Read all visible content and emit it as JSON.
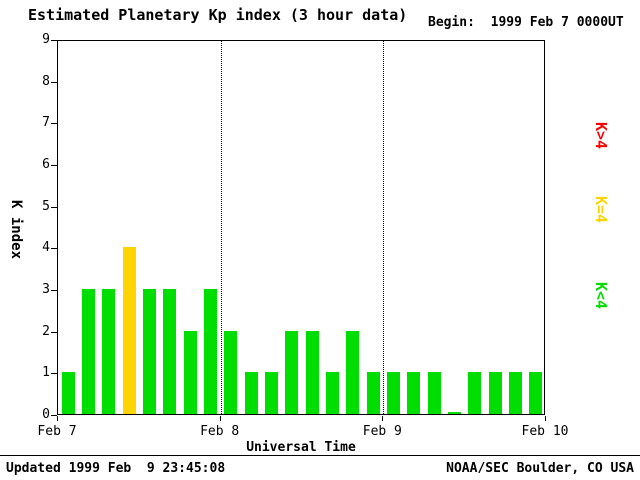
{
  "header": {
    "title": "Estimated Planetary Kp index (3 hour data)",
    "begin_label": "Begin:",
    "begin_value": "1999 Feb 7 0000UT"
  },
  "footer": {
    "updated": "Updated 1999 Feb  9 23:45:08",
    "source": "NOAA/SEC Boulder, CO USA"
  },
  "legend": [
    {
      "label": "K>4",
      "color": "#ff0000"
    },
    {
      "label": "K=4",
      "color": "#ffd400"
    },
    {
      "label": "K<4",
      "color": "#00dd00"
    }
  ],
  "chart_data": {
    "type": "bar",
    "title": "Estimated Planetary Kp index (3 hour data)",
    "xlabel": "Universal Time",
    "ylabel": "K index",
    "ylim": [
      0,
      9
    ],
    "y_ticks": [
      0,
      1,
      2,
      3,
      4,
      5,
      6,
      7,
      8,
      9
    ],
    "x_ticks": [
      "Feb 7",
      "Feb 8",
      "Feb 9",
      "Feb 10"
    ],
    "bin_hours": 3,
    "values": [
      1,
      3,
      3,
      4,
      3,
      3,
      2,
      3,
      2,
      1,
      1,
      2,
      2,
      1,
      2,
      1,
      1,
      1,
      1,
      0,
      1,
      1,
      1,
      1
    ],
    "colors": {
      "below4": "#00dd00",
      "equal4": "#ffd400",
      "above4": "#ff0000"
    },
    "grid": "dotted vertical lines at day boundaries",
    "legend_position": "right"
  }
}
